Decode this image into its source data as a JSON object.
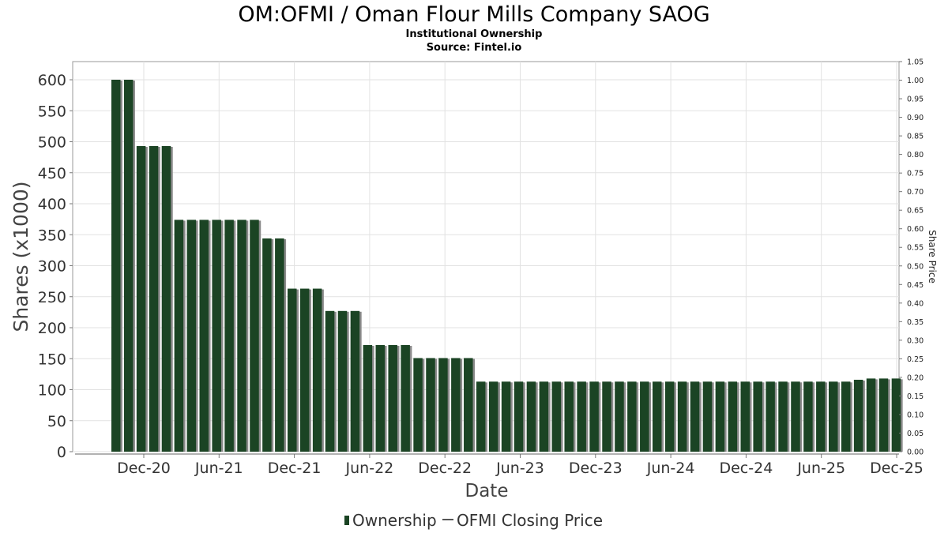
{
  "chart_data": {
    "type": "bar",
    "title": "OM:OFMI / Oman Flour Mills Company SAOG",
    "subtitle_lines": [
      "Institutional Ownership",
      "Source: Fintel.io"
    ],
    "xlabel": "Date",
    "ylabel": "Shares (x1000)",
    "y2label": "Share Price",
    "ylim": [
      0,
      600
    ],
    "y_ticks": [
      "0",
      "50",
      "100",
      "150",
      "200",
      "250",
      "300",
      "350",
      "400",
      "450",
      "500",
      "550",
      "600"
    ],
    "y2lim": [
      0,
      1.05
    ],
    "y2_ticks": [
      "0.00",
      "0.05",
      "0.10",
      "0.15",
      "0.20",
      "0.25",
      "0.30",
      "0.35",
      "0.40",
      "0.45",
      "0.50",
      "0.55",
      "0.60",
      "0.65",
      "0.70",
      "0.75",
      "0.80",
      "0.85",
      "0.90",
      "0.95",
      "1.00",
      "1.05"
    ],
    "x_ticks": [
      "Dec-20",
      "Jun-21",
      "Dec-21",
      "Jun-22",
      "Dec-22",
      "Jun-23",
      "Dec-23",
      "Jun-24",
      "Dec-24",
      "Jun-25",
      "Dec-25"
    ],
    "grid": true,
    "legend_position": "bottom-center",
    "series": [
      {
        "name": "Ownership",
        "color": "#1b4424",
        "values": [
          600,
          600,
          493,
          493,
          493,
          374,
          374,
          374,
          374,
          374,
          374,
          374,
          344,
          344,
          263,
          263,
          263,
          227,
          227,
          227,
          172,
          172,
          172,
          172,
          151,
          151,
          151,
          151,
          151,
          113,
          113,
          113,
          113,
          113,
          113,
          113,
          113,
          113,
          113,
          113,
          113,
          113,
          113,
          113,
          113,
          113,
          113,
          113,
          113,
          113,
          113,
          113,
          113,
          113,
          113,
          113,
          113,
          113,
          113,
          116,
          118,
          118,
          118
        ]
      },
      {
        "name": "OFMI Closing Price",
        "color": "#555555",
        "values": []
      }
    ]
  }
}
